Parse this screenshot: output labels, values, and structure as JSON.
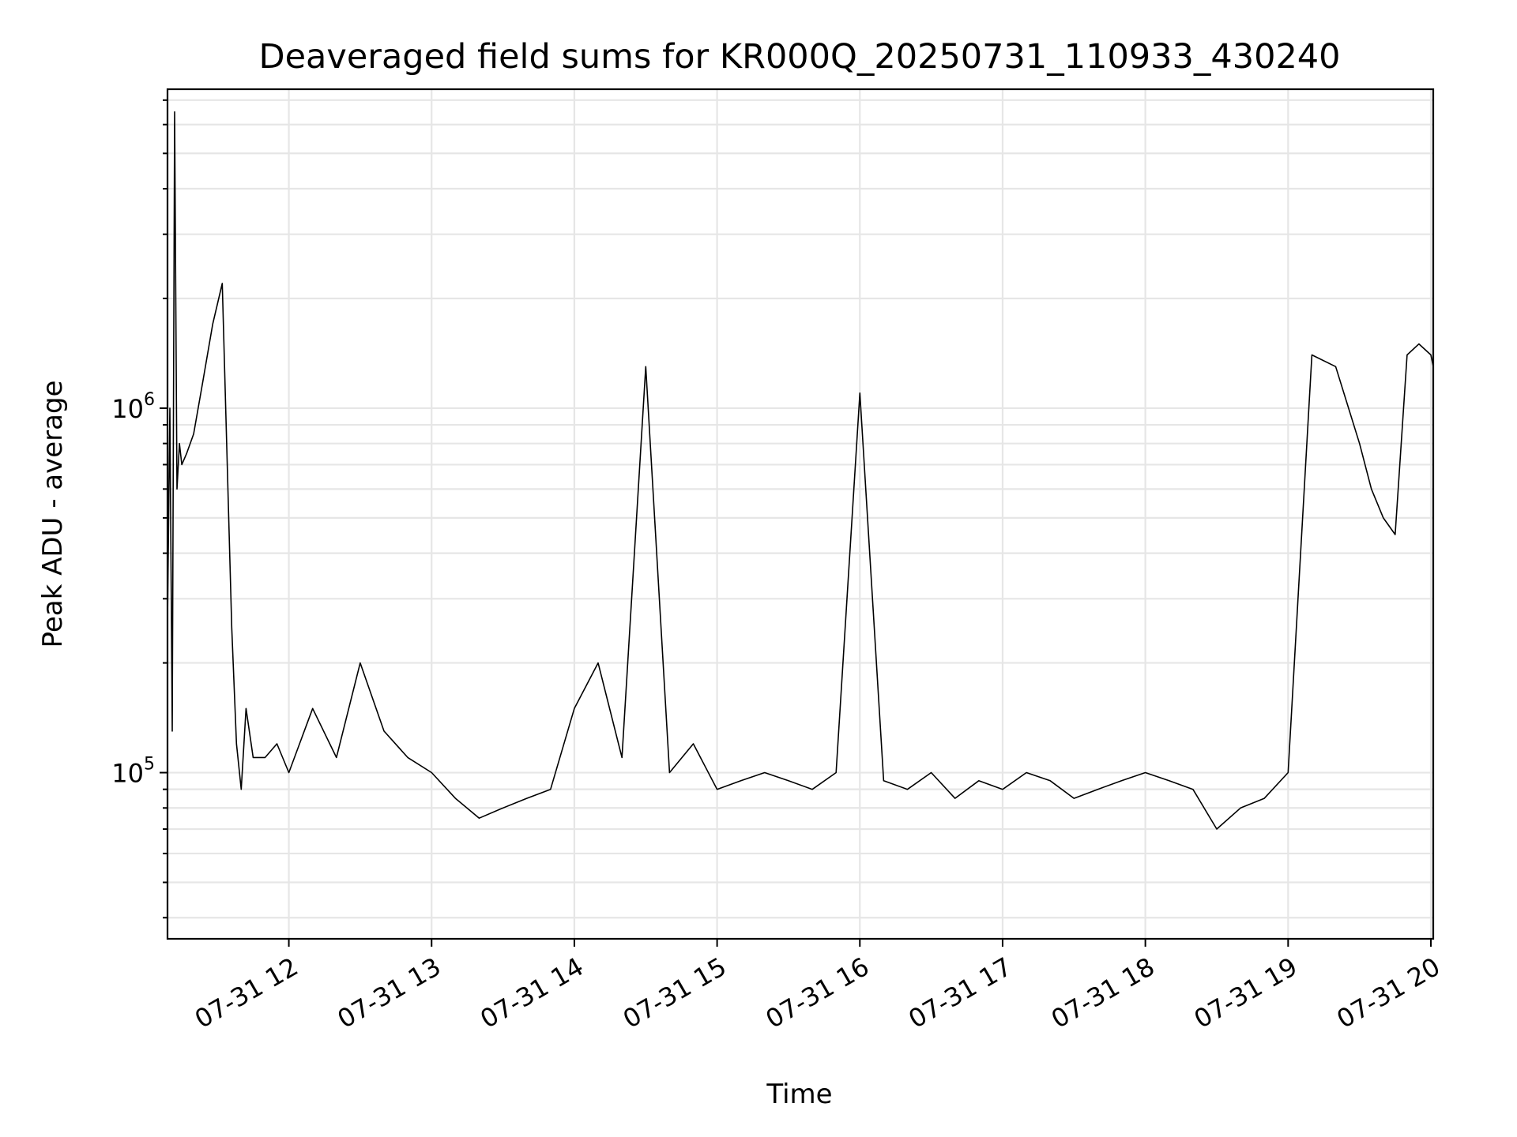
{
  "chart_data": {
    "type": "line",
    "title": "Deaveraged field sums for KR000Q_20250731_110933_430240",
    "xlabel": "Time",
    "ylabel": "Peak ADU - average",
    "y_scale": "log",
    "xlim": [
      "2025-07-31 11:09",
      "2025-07-31 20:01"
    ],
    "ylim": [
      35000,
      7500000
    ],
    "grid": "both (major and minor)",
    "line_color": "#000000",
    "x_ticks": [
      {
        "value": "2025-07-31 12:00",
        "label": "07-31 12"
      },
      {
        "value": "2025-07-31 13:00",
        "label": "07-31 13"
      },
      {
        "value": "2025-07-31 14:00",
        "label": "07-31 14"
      },
      {
        "value": "2025-07-31 15:00",
        "label": "07-31 15"
      },
      {
        "value": "2025-07-31 16:00",
        "label": "07-31 16"
      },
      {
        "value": "2025-07-31 17:00",
        "label": "07-31 17"
      },
      {
        "value": "2025-07-31 18:00",
        "label": "07-31 18"
      },
      {
        "value": "2025-07-31 19:00",
        "label": "07-31 19"
      },
      {
        "value": "2025-07-31 20:00",
        "label": "07-31 20"
      }
    ],
    "y_ticks": [
      {
        "value": 100000,
        "base": "10",
        "exp": "5"
      },
      {
        "value": 1000000,
        "base": "10",
        "exp": "6"
      }
    ],
    "series": [
      {
        "x": [
          "11:09",
          "11:10",
          "11:11",
          "11:12",
          "11:13",
          "11:14",
          "11:15",
          "11:17",
          "11:20",
          "11:24",
          "11:28",
          "11:32",
          "11:36",
          "11:38",
          "11:40",
          "11:42",
          "11:45",
          "11:50",
          "11:55",
          "12:00",
          "12:10",
          "12:20",
          "12:30",
          "12:40",
          "12:50",
          "13:00",
          "13:10",
          "13:20",
          "13:30",
          "13:40",
          "13:50",
          "14:00",
          "14:10",
          "14:20",
          "14:30",
          "14:40",
          "14:50",
          "15:00",
          "15:10",
          "15:20",
          "15:30",
          "15:40",
          "15:50",
          "16:00",
          "16:10",
          "16:20",
          "16:30",
          "16:40",
          "16:50",
          "17:00",
          "17:10",
          "17:20",
          "17:30",
          "17:40",
          "17:50",
          "18:00",
          "18:10",
          "18:20",
          "18:30",
          "18:40",
          "18:50",
          "19:00",
          "19:10",
          "19:20",
          "19:30",
          "19:35",
          "19:40",
          "19:45",
          "19:50",
          "19:55",
          "20:00",
          "20:01"
        ],
        "y": [
          260000,
          1000000,
          130000,
          6500000,
          600000,
          800000,
          700000,
          750000,
          850000,
          1200000,
          1700000,
          2200000,
          250000,
          120000,
          90000,
          150000,
          110000,
          110000,
          120000,
          100000,
          150000,
          110000,
          200000,
          130000,
          110000,
          100000,
          85000,
          75000,
          80000,
          85000,
          90000,
          150000,
          200000,
          110000,
          1300000,
          100000,
          120000,
          90000,
          95000,
          100000,
          95000,
          90000,
          100000,
          1100000,
          95000,
          90000,
          100000,
          85000,
          95000,
          90000,
          100000,
          95000,
          85000,
          90000,
          95000,
          100000,
          95000,
          90000,
          70000,
          80000,
          85000,
          100000,
          1400000,
          1300000,
          800000,
          600000,
          500000,
          450000,
          1400000,
          1500000,
          1400000,
          1300000
        ]
      }
    ]
  }
}
